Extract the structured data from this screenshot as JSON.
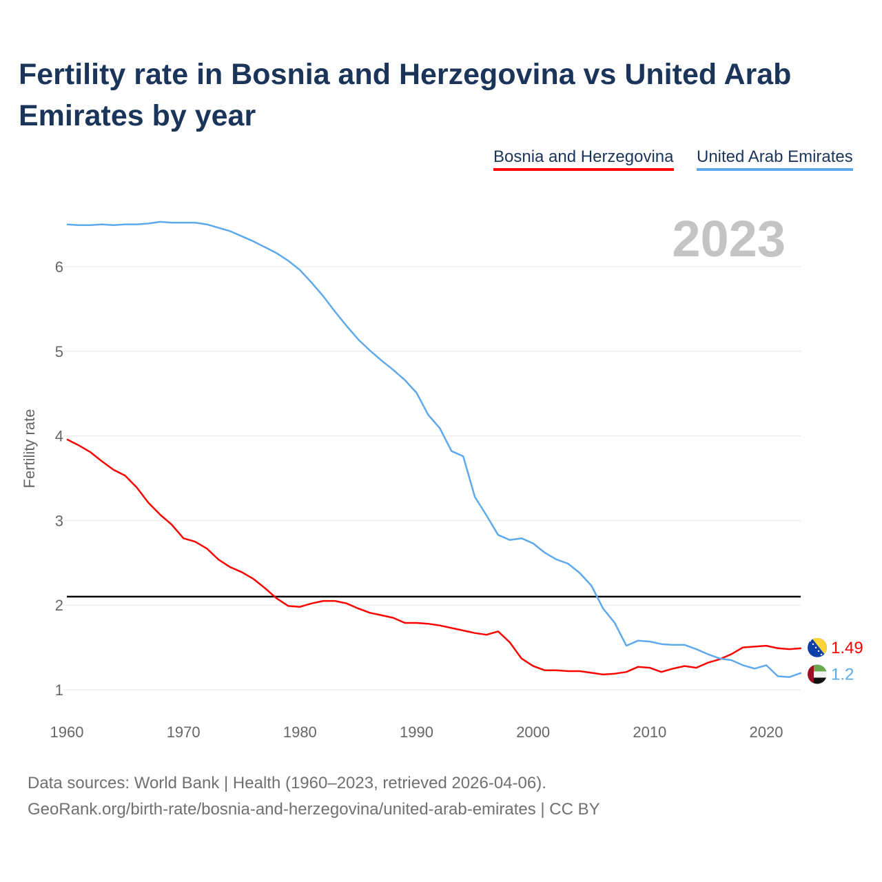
{
  "chart_data": {
    "type": "line",
    "title": "Fertility rate in Bosnia and Herzegovina vs United Arab Emirates by year",
    "xlabel": "",
    "ylabel": "Fertility rate",
    "xlim": [
      1960,
      2023
    ],
    "ylim": [
      1,
      6.6
    ],
    "x_ticks": [
      1960,
      1970,
      1980,
      1990,
      2000,
      2010,
      2020
    ],
    "y_ticks": [
      1,
      2,
      3,
      4,
      5,
      6
    ],
    "grid": true,
    "legend_placement": "top-right",
    "year_watermark": "2023",
    "reference_line": {
      "value": 2.1,
      "color": "#000000"
    },
    "x_start": 1960,
    "series": [
      {
        "name": "Bosnia and Herzegovina",
        "color": "#ff0000",
        "end_label": "1.49",
        "values": [
          3.96,
          3.89,
          3.81,
          3.7,
          3.6,
          3.53,
          3.39,
          3.21,
          3.07,
          2.95,
          2.79,
          2.75,
          2.67,
          2.54,
          2.45,
          2.39,
          2.31,
          2.2,
          2.08,
          1.99,
          1.98,
          2.02,
          2.05,
          2.05,
          2.02,
          1.96,
          1.91,
          1.88,
          1.85,
          1.79,
          1.79,
          1.78,
          1.76,
          1.73,
          1.7,
          1.67,
          1.65,
          1.69,
          1.56,
          1.37,
          1.28,
          1.23,
          1.23,
          1.22,
          1.22,
          1.2,
          1.18,
          1.19,
          1.21,
          1.27,
          1.26,
          1.21,
          1.25,
          1.28,
          1.26,
          1.32,
          1.36,
          1.42,
          1.5,
          1.51,
          1.52,
          1.49,
          1.48,
          1.49
        ]
      },
      {
        "name": "United Arab Emirates",
        "color": "#5ea8ec",
        "end_label": "1.2",
        "values": [
          6.5,
          6.49,
          6.49,
          6.5,
          6.49,
          6.5,
          6.5,
          6.51,
          6.53,
          6.52,
          6.52,
          6.52,
          6.5,
          6.46,
          6.42,
          6.36,
          6.3,
          6.23,
          6.16,
          6.07,
          5.96,
          5.81,
          5.65,
          5.47,
          5.3,
          5.14,
          5.01,
          4.89,
          4.78,
          4.66,
          4.51,
          4.25,
          4.09,
          3.82,
          3.76,
          3.28,
          3.06,
          2.83,
          2.77,
          2.79,
          2.73,
          2.62,
          2.54,
          2.49,
          2.38,
          2.23,
          1.96,
          1.79,
          1.52,
          1.58,
          1.57,
          1.54,
          1.53,
          1.53,
          1.48,
          1.42,
          1.37,
          1.35,
          1.29,
          1.25,
          1.29,
          1.16,
          1.15,
          1.2
        ]
      }
    ]
  },
  "footer": {
    "line1": "Data sources: World Bank | Health (1960–2023, retrieved 2026-04-06).",
    "line2": "GeoRank.org/birth-rate/bosnia-and-herzegovina/united-arab-emirates | CC BY"
  }
}
